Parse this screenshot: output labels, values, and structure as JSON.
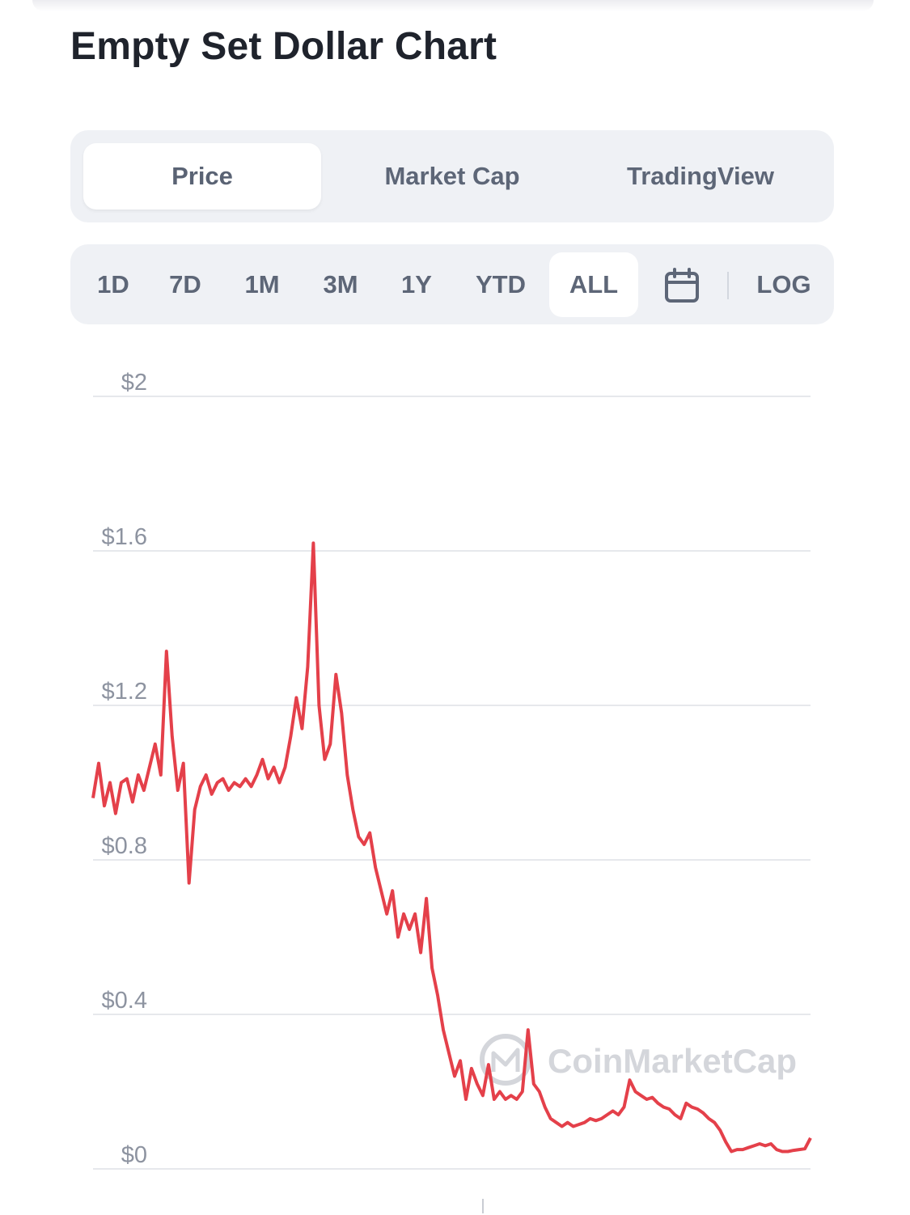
{
  "title": "Empty Set Dollar Chart",
  "tabs": [
    {
      "label": "Price",
      "active": true
    },
    {
      "label": "Market Cap",
      "active": false
    },
    {
      "label": "TradingView",
      "active": false
    }
  ],
  "ranges": [
    {
      "label": "1D",
      "active": false
    },
    {
      "label": "7D",
      "active": false
    },
    {
      "label": "1M",
      "active": false
    },
    {
      "label": "3M",
      "active": false
    },
    {
      "label": "1Y",
      "active": false
    },
    {
      "label": "YTD",
      "active": false
    },
    {
      "label": "ALL",
      "active": true
    }
  ],
  "calendar_icon": "calendar-icon",
  "log_label": "LOG",
  "watermark": "CoinMarketCap",
  "colors": {
    "line": "#e4404a",
    "grid": "#e6e8ec",
    "tab_bg": "#eff1f5",
    "text": "#5d6677",
    "title": "#1f232c"
  },
  "chart_data": {
    "type": "line",
    "title": "",
    "xlabel": "",
    "ylabel": "",
    "ylim": [
      0,
      2
    ],
    "y_ticks": [
      0,
      0.4,
      0.8,
      1.2,
      1.6,
      2
    ],
    "y_tick_labels": [
      "$0",
      "$0.4",
      "$0.8",
      "$1.2",
      "$1.6",
      "$2"
    ],
    "grid": true,
    "legend": "none",
    "series": [
      {
        "values": [
          0.96,
          1.05,
          0.94,
          1.0,
          0.92,
          1.0,
          1.01,
          0.95,
          1.02,
          0.98,
          1.04,
          1.1,
          1.02,
          1.34,
          1.12,
          0.98,
          1.05,
          0.74,
          0.93,
          0.99,
          1.02,
          0.97,
          1.0,
          1.01,
          0.98,
          1.0,
          0.99,
          1.01,
          0.99,
          1.02,
          1.06,
          1.01,
          1.04,
          1.0,
          1.04,
          1.12,
          1.22,
          1.14,
          1.3,
          1.62,
          1.2,
          1.06,
          1.1,
          1.28,
          1.18,
          1.02,
          0.93,
          0.86,
          0.84,
          0.87,
          0.78,
          0.72,
          0.66,
          0.72,
          0.6,
          0.66,
          0.62,
          0.66,
          0.56,
          0.7,
          0.52,
          0.45,
          0.36,
          0.3,
          0.24,
          0.28,
          0.18,
          0.26,
          0.22,
          0.19,
          0.27,
          0.18,
          0.2,
          0.18,
          0.19,
          0.18,
          0.2,
          0.36,
          0.22,
          0.2,
          0.16,
          0.13,
          0.12,
          0.11,
          0.12,
          0.11,
          0.115,
          0.12,
          0.13,
          0.125,
          0.13,
          0.14,
          0.15,
          0.14,
          0.16,
          0.23,
          0.2,
          0.19,
          0.18,
          0.185,
          0.17,
          0.16,
          0.155,
          0.14,
          0.13,
          0.17,
          0.16,
          0.155,
          0.145,
          0.13,
          0.12,
          0.1,
          0.07,
          0.045,
          0.05,
          0.05,
          0.055,
          0.06,
          0.065,
          0.06,
          0.065,
          0.05,
          0.045,
          0.045,
          0.048,
          0.05,
          0.052,
          0.08
        ]
      }
    ]
  }
}
